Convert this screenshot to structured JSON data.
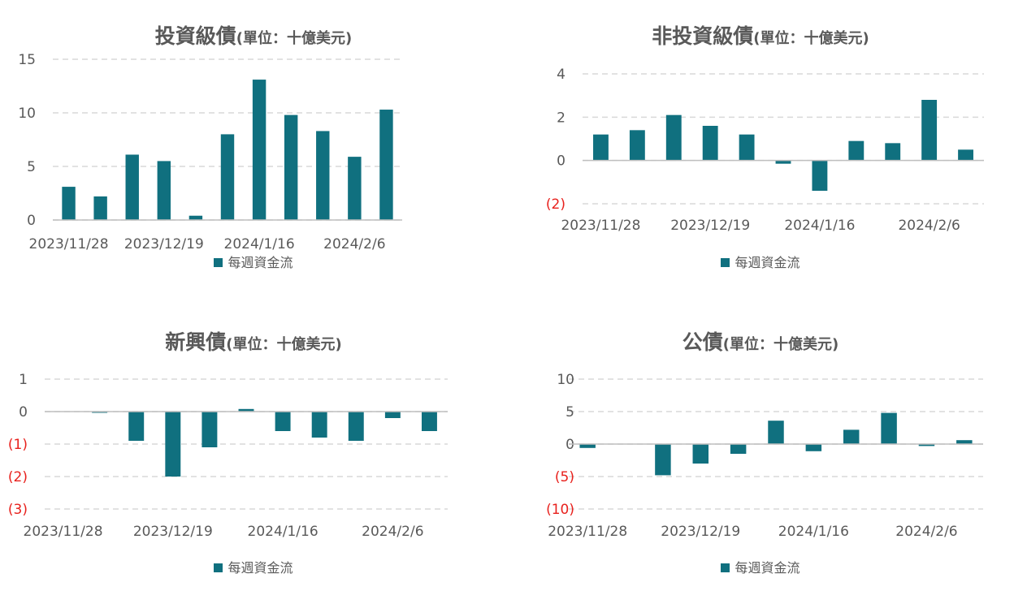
{
  "colors": {
    "bar": "#10707f",
    "grid": "#d9d9d9",
    "text": "#595959",
    "negative_label": "#e8211d"
  },
  "chart_data": [
    {
      "type": "bar",
      "title": "投資級債",
      "subtitle": "(單位：十億美元)",
      "legend": [
        "每週資金流"
      ],
      "legend_position": "bottom",
      "x_tick_labels": [
        "2023/11/28",
        "2023/12/19",
        "2024/1/16",
        "2024/2/6"
      ],
      "y_ticks": [
        "0",
        "5",
        "10",
        "15"
      ],
      "ylim": [
        0,
        15
      ],
      "grid": true,
      "series": [
        {
          "name": "每週資金流",
          "values": [
            3.1,
            2.2,
            6.1,
            5.5,
            0.4,
            8.0,
            13.1,
            9.8,
            8.3,
            5.9,
            10.3
          ]
        }
      ]
    },
    {
      "type": "bar",
      "title": "非投資級債",
      "subtitle": "(單位：十億美元)",
      "legend": [
        "每週資金流"
      ],
      "legend_position": "bottom",
      "x_tick_labels": [
        "2023/11/28",
        "2023/12/19",
        "2024/1/16",
        "2024/2/6"
      ],
      "y_ticks": [
        "(2)",
        "0",
        "2",
        "4"
      ],
      "ylim": [
        -2,
        4
      ],
      "grid": true,
      "series": [
        {
          "name": "每週資金流",
          "values": [
            1.2,
            1.4,
            2.1,
            1.6,
            1.2,
            -0.15,
            -1.4,
            0.9,
            0.8,
            2.8,
            0.5
          ]
        }
      ]
    },
    {
      "type": "bar",
      "title": "新興債",
      "subtitle": "(單位：十億美元)",
      "legend": [
        "每週資金流"
      ],
      "legend_position": "bottom",
      "x_tick_labels": [
        "2023/11/28",
        "2023/12/19",
        "2024/1/16",
        "2024/2/6"
      ],
      "y_ticks": [
        "(3)",
        "(2)",
        "(1)",
        "0",
        "1"
      ],
      "ylim": [
        -3,
        1
      ],
      "grid": true,
      "series": [
        {
          "name": "每週資金流",
          "values": [
            0.0,
            -0.03,
            -0.9,
            -2.0,
            -1.1,
            0.08,
            -0.6,
            -0.8,
            -0.9,
            -0.2,
            -0.6
          ]
        }
      ]
    },
    {
      "type": "bar",
      "title": "公債",
      "subtitle": "(單位：十億美元)",
      "legend": [
        "每週資金流"
      ],
      "legend_position": "bottom",
      "x_tick_labels": [
        "2023/11/28",
        "2023/12/19",
        "2024/1/16",
        "2024/2/6"
      ],
      "y_ticks": [
        "(10)",
        "(5)",
        "0",
        "5",
        "10"
      ],
      "ylim": [
        -10,
        10
      ],
      "grid": true,
      "series": [
        {
          "name": "每週資金流",
          "values": [
            -0.6,
            0.0,
            -4.8,
            -3.0,
            -1.5,
            3.6,
            -1.1,
            2.2,
            4.8,
            -0.3,
            0.6
          ]
        }
      ]
    }
  ]
}
